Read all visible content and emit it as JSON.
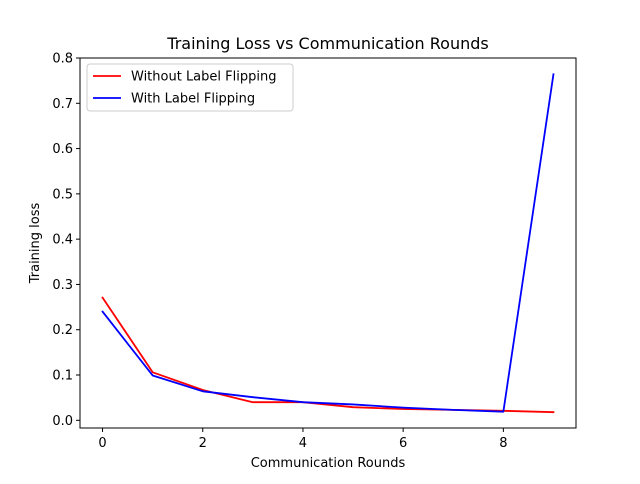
{
  "chart_data": {
    "type": "line",
    "title": "Training Loss vs Communication Rounds",
    "xlabel": "Communication Rounds",
    "ylabel": "Training loss",
    "x": [
      0,
      1,
      2,
      3,
      4,
      5,
      6,
      7,
      8,
      9
    ],
    "xlim": [
      -0.45,
      9.45
    ],
    "ylim": [
      -0.017,
      0.8
    ],
    "xticks": [
      0,
      2,
      4,
      6,
      8
    ],
    "yticks": [
      0.0,
      0.1,
      0.2,
      0.3,
      0.4,
      0.5,
      0.6,
      0.7,
      0.8
    ],
    "xtick_labels": [
      "0",
      "2",
      "4",
      "6",
      "8"
    ],
    "ytick_labels": [
      "0.0",
      "0.1",
      "0.2",
      "0.3",
      "0.4",
      "0.5",
      "0.6",
      "0.7",
      "0.8"
    ],
    "grid": false,
    "legend_position": "top-left",
    "series": [
      {
        "name": "Without Label Flipping",
        "color": "#ff0000",
        "values": [
          0.271,
          0.106,
          0.067,
          0.04,
          0.04,
          0.029,
          0.025,
          0.023,
          0.021,
          0.018
        ]
      },
      {
        "name": "With Label Flipping",
        "color": "#0000ff",
        "values": [
          0.24,
          0.099,
          0.064,
          0.051,
          0.04,
          0.035,
          0.028,
          0.023,
          0.019,
          0.764
        ]
      }
    ]
  }
}
